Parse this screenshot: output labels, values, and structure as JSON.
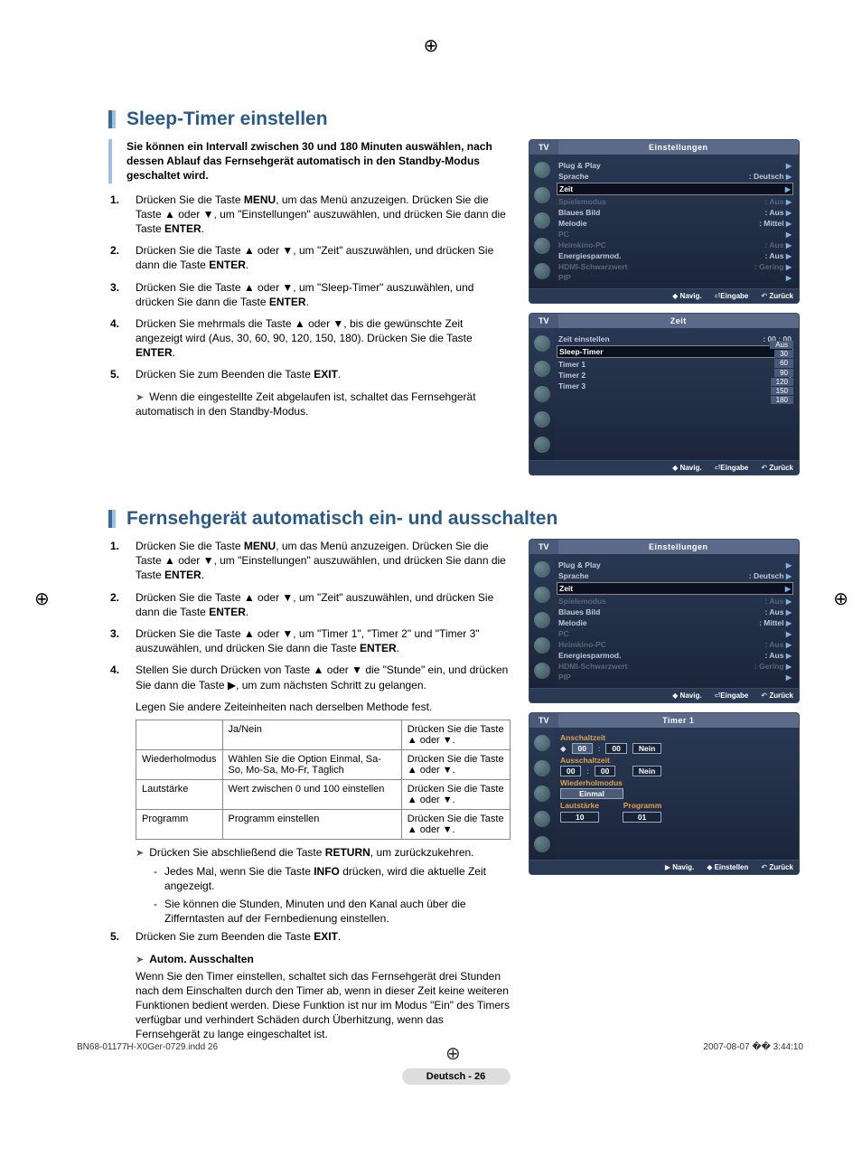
{
  "registration": "⊕",
  "section1": {
    "title": "Sleep-Timer einstellen",
    "intro": "Sie können ein Intervall zwischen 30 und 180 Minuten auswählen, nach dessen Ablauf das Fernsehgerät automatisch in den Standby-Modus geschaltet wird.",
    "steps": [
      {
        "n": "1.",
        "t": "Drücken Sie die Taste <b>MENU</b>, um das Menü anzuzeigen. Drücken Sie die Taste ▲ oder ▼, um \"Einstellungen\" auszuwählen, und drücken Sie dann die Taste <b>ENTER</b>."
      },
      {
        "n": "2.",
        "t": "Drücken Sie die Taste ▲ oder ▼, um \"Zeit\" auszuwählen, und drücken Sie dann die Taste <b>ENTER</b>."
      },
      {
        "n": "3.",
        "t": "Drücken Sie die Taste ▲ oder ▼, um \"Sleep-Timer\" auszuwählen, und drücken Sie dann die Taste <b>ENTER</b>."
      },
      {
        "n": "4.",
        "t": "Drücken Sie mehrmals die Taste ▲ oder ▼, bis die gewünschte Zeit angezeigt wird (Aus, 30, 60, 90, 120, 150, 180). Drücken Sie die Taste <b>ENTER</b>."
      },
      {
        "n": "5.",
        "t": "Drücken Sie zum Beenden die Taste <b>EXIT</b>."
      }
    ],
    "note": "Wenn die eingestellte Zeit abgelaufen ist, schaltet das Fernsehgerät automatisch in den Standby-Modus."
  },
  "section2": {
    "title": "Fernsehgerät automatisch ein- und ausschalten",
    "steps": [
      {
        "n": "1.",
        "t": "Drücken Sie die Taste <b>MENU</b>, um das Menü anzuzeigen. Drücken Sie die Taste ▲ oder ▼, um \"Einstellungen\" auszuwählen, und drücken Sie dann die Taste <b>ENTER</b>."
      },
      {
        "n": "2.",
        "t": "Drücken Sie die Taste ▲ oder ▼, um \"Zeit\" auszuwählen, und drücken Sie dann die Taste <b>ENTER</b>."
      },
      {
        "n": "3.",
        "t": "Drücken Sie die Taste ▲ oder ▼, um \"Timer 1\", \"Timer 2\" und \"Timer 3\" auszuwählen, und drücken Sie dann die Taste <b>ENTER</b>."
      },
      {
        "n": "4.",
        "t": "Stellen Sie durch Drücken von Taste ▲ oder ▼ die \"Stunde\" ein, und drücken Sie dann die Taste ▶, um zum nächsten Schritt zu gelangen."
      }
    ],
    "step4_sub": "Legen Sie andere Zeiteinheiten nach derselben Methode fest.",
    "table": {
      "rows": [
        [
          "",
          "Ja/Nein",
          "Drücken Sie die Taste ▲ oder ▼."
        ],
        [
          "Wiederholmodus",
          "Wählen Sie die Option Einmal, Sa-So, Mo-Sa, Mo-Fr, Täglich",
          "Drücken Sie die Taste ▲ oder ▼."
        ],
        [
          "Lautstärke",
          "Wert zwischen 0 und 100 einstellen",
          "Drücken Sie die Taste ▲ oder ▼."
        ],
        [
          "Programm",
          "Programm einstellen",
          "Drücken Sie die Taste ▲ oder ▼."
        ]
      ]
    },
    "after_table_note": "Drücken Sie abschließend die Taste <b>RETURN</b>, um zurückzukehren.",
    "after_table_bullets": [
      "Jedes Mal, wenn Sie die Taste <b>INFO</b> drücken, wird die aktuelle Zeit angezeigt.",
      "Sie können die Stunden, Minuten und den Kanal auch über die Zifferntasten auf der Fernbedienung einstellen."
    ],
    "step5": {
      "n": "5.",
      "t": "Drücken Sie zum Beenden die Taste <b>EXIT</b>."
    },
    "autoOff": {
      "head": "Autom. Ausschalten",
      "body": "Wenn Sie den Timer einstellen, schaltet sich das Fernsehgerät drei Stunden nach dem Einschalten durch den Timer ab, wenn in dieser Zeit keine weiteren Funktionen bedient werden. Diese Funktion ist nur im Modus \"Ein\" des Timers verfügbar und verhindert Schäden durch Überhitzung, wenn das Fernsehgerät zu lange eingeschaltet ist."
    }
  },
  "osd": {
    "tv": "TV",
    "navig": "Navig.",
    "eingabe": "Eingabe",
    "zuruck": "Zurück",
    "einstellen": "Einstellen",
    "panel_einst": {
      "title": "Einstellungen",
      "rows": [
        {
          "k": "Plug & Play",
          "v": "",
          "dim": false
        },
        {
          "k": "Sprache",
          "v": ": Deutsch",
          "dim": false
        },
        {
          "k": "Zeit",
          "v": "",
          "hl": true
        },
        {
          "k": "Spielemodus",
          "v": ": Aus",
          "dim": true
        },
        {
          "k": "Blaues Bild",
          "v": ": Aus",
          "dim": false
        },
        {
          "k": "Melodie",
          "v": ": Mittel",
          "dim": false
        },
        {
          "k": "PC",
          "v": "",
          "dim": true
        },
        {
          "k": "Heimkino-PC",
          "v": ": Aus",
          "dim": true
        },
        {
          "k": "Energiesparmod.",
          "v": ": Aus",
          "dim": false
        },
        {
          "k": "HDMI-Schwarzwert",
          "v": ": Gering",
          "dim": true
        },
        {
          "k": "PIP",
          "v": "",
          "dim": true
        }
      ]
    },
    "panel_zeit": {
      "title": "Zeit",
      "rows": [
        {
          "k": "Zeit einstellen",
          "v": ": 00 : 00"
        },
        {
          "k": "Sleep-Timer",
          "v": ":",
          "hl": true
        },
        {
          "k": "Timer 1",
          "v": ":"
        },
        {
          "k": "Timer 2",
          "v": ":"
        },
        {
          "k": "Timer 3",
          "v": ":"
        }
      ],
      "sleep_values": [
        "Aus",
        "30",
        "60",
        "90",
        "120",
        "150",
        "180"
      ]
    },
    "panel_timer1": {
      "title": "Timer 1",
      "on_lbl": "Anschaltzeit",
      "off_lbl": "Ausschaltzeit",
      "h1": "00",
      "m1": "00",
      "yn1": "Nein",
      "h2": "00",
      "m2": "00",
      "yn2": "Nein",
      "rep_lbl": "Wiederholmodus",
      "rep_v": "Einmal",
      "vol_lbl": "Lautstärke",
      "prog_lbl": "Programm",
      "vol_v": "10",
      "prog_v": "01"
    }
  },
  "page_badge": "Deutsch - 26",
  "footer": {
    "left": "BN68-01177H-X0Ger-0729.indd   26",
    "right": "2007-08-07   �� 3:44:10"
  }
}
